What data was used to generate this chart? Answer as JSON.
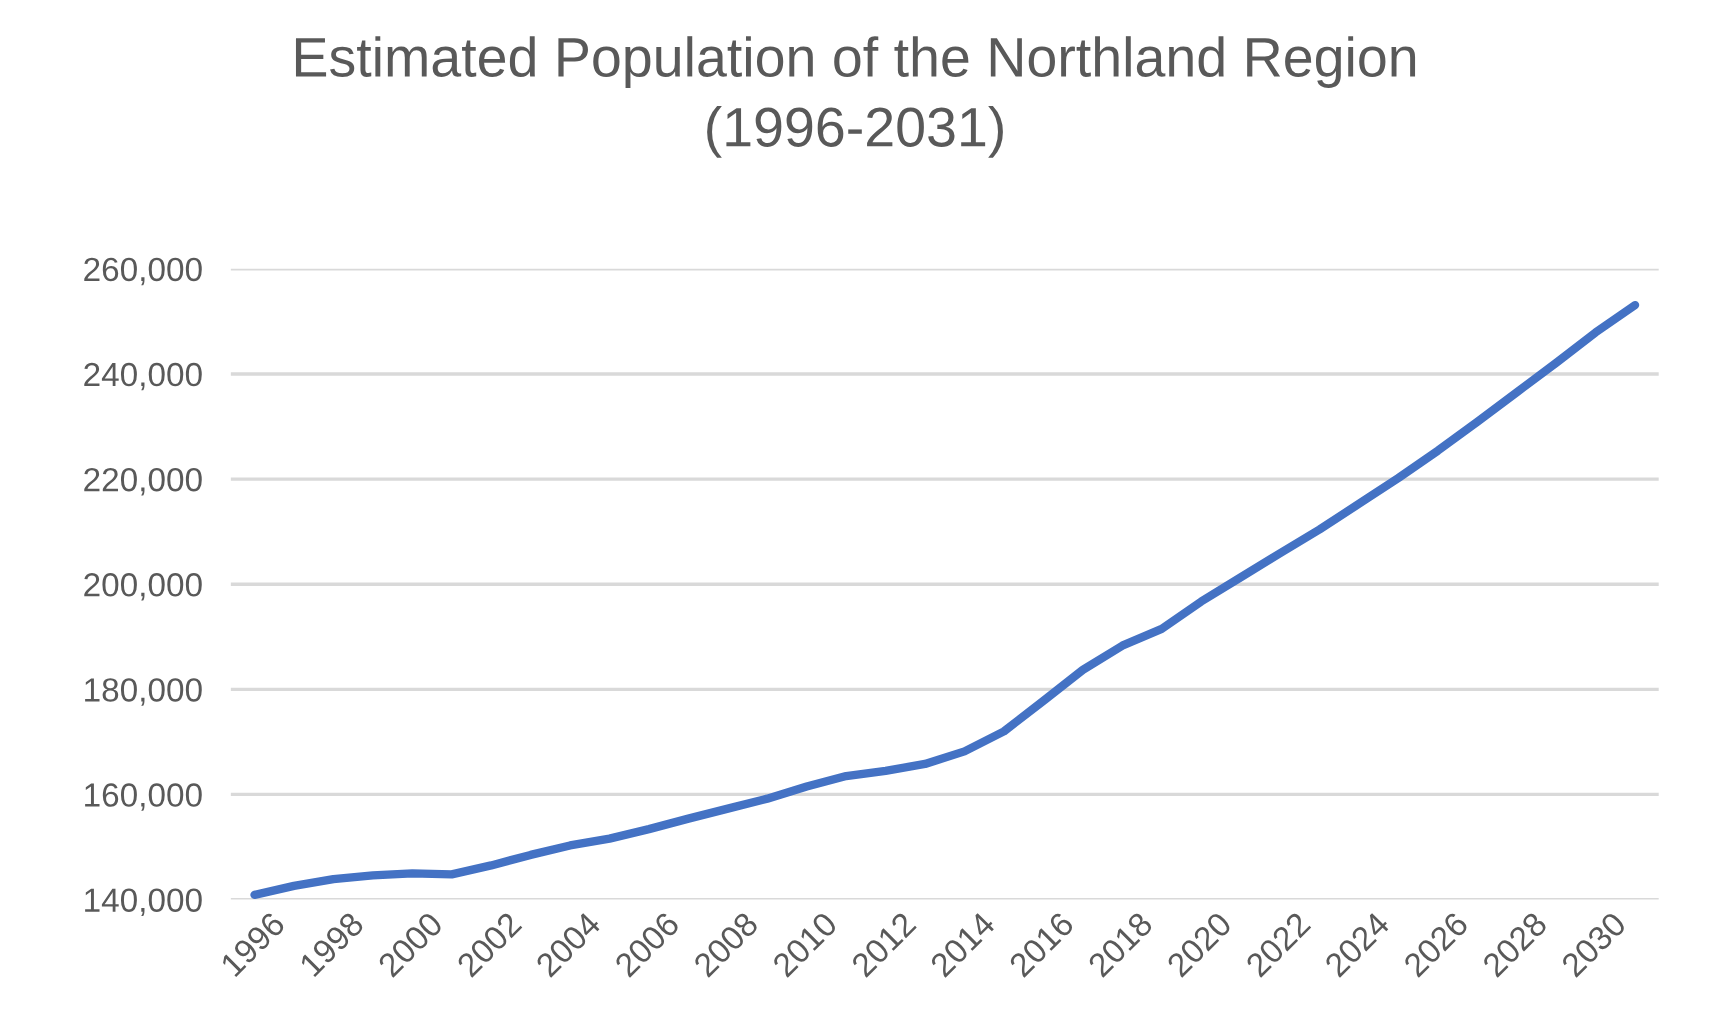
{
  "chart_data": {
    "type": "line",
    "title": "Estimated Population of the Northland Region\n(1996-2031)",
    "categories": [
      "1996",
      null,
      "1998",
      null,
      "2000",
      null,
      "2002",
      null,
      "2004",
      null,
      "2006",
      null,
      "2008",
      null,
      "2010",
      null,
      "2012",
      null,
      "2014",
      null,
      "2016",
      null,
      "2018",
      null,
      "2020",
      null,
      "2022",
      null,
      "2024",
      null,
      "2026",
      null,
      "2028",
      null,
      "2030",
      null
    ],
    "series": [
      {
        "color": "#4472c4",
        "values": [
          140900,
          142600,
          143900,
          144600,
          145000,
          144800,
          146500,
          148500,
          150300,
          151600,
          153400,
          155400,
          157300,
          159200,
          161500,
          163500,
          164500,
          165800,
          168200,
          172000,
          177800,
          183700,
          188300,
          191500,
          196700,
          201300,
          205900,
          210400,
          215300,
          220200,
          225400,
          230900,
          236500,
          242100,
          247900,
          253100
        ]
      }
    ],
    "ylim": [
      140000,
      260000
    ],
    "yticks": [
      {
        "value": 140000,
        "label": "140,000"
      },
      {
        "value": 160000,
        "label": "160,000"
      },
      {
        "value": 180000,
        "label": "180,000"
      },
      {
        "value": 200000,
        "label": "200,000"
      },
      {
        "value": 220000,
        "label": "220,000"
      },
      {
        "value": 240000,
        "label": "240,000"
      },
      {
        "value": 260000,
        "label": "260,000"
      }
    ],
    "grid": "y",
    "legend": false,
    "marker": "none",
    "line_style": "solid"
  }
}
